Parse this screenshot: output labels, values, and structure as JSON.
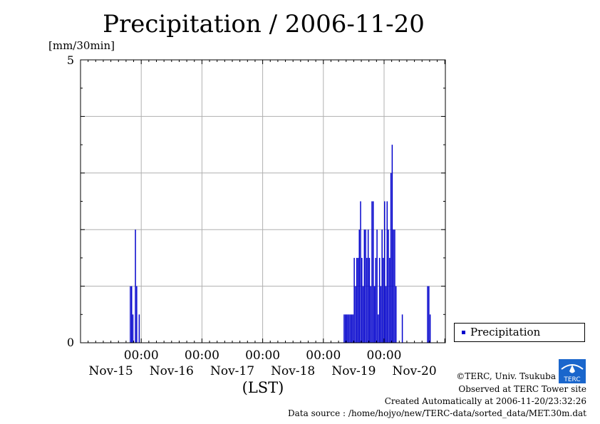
{
  "title": "Precipitation / 2006-11-20",
  "colors": {
    "series": "#0000cc",
    "grid": "#b0b0b0",
    "axis": "#000000"
  },
  "chart_data": {
    "type": "bar",
    "title": "Precipitation / 2006-11-20",
    "ylabel": "[mm/30min]",
    "xlabel": "(LST)",
    "ylim": [
      0,
      5
    ],
    "yticks": [
      "0",
      "5"
    ],
    "xlim": [
      "2006-11-15 00:00",
      "2006-11-21 00:00"
    ],
    "x_time_ticks": [
      "00:00",
      "00:00",
      "00:00",
      "00:00",
      "00:00"
    ],
    "x_date_ticks": [
      "Nov-15",
      "Nov-16",
      "Nov-17",
      "Nov-18",
      "Nov-19",
      "Nov-20"
    ],
    "grid": true,
    "legend": "outside-right",
    "series": [
      {
        "name": "Precipitation",
        "points": [
          [
            "2006-11-15 19:30",
            1.0
          ],
          [
            "2006-11-15 20:00",
            1.0
          ],
          [
            "2006-11-15 20:30",
            0.5
          ],
          [
            "2006-11-15 21:30",
            2.0
          ],
          [
            "2006-11-15 22:00",
            1.0
          ],
          [
            "2006-11-15 23:00",
            0.5
          ],
          [
            "2006-11-19 08:00",
            0.5
          ],
          [
            "2006-11-19 08:30",
            0.5
          ],
          [
            "2006-11-19 09:00",
            0.5
          ],
          [
            "2006-11-19 09:30",
            0.5
          ],
          [
            "2006-11-19 10:00",
            0.5
          ],
          [
            "2006-11-19 10:30",
            0.5
          ],
          [
            "2006-11-19 11:00",
            0.5
          ],
          [
            "2006-11-19 11:30",
            0.5
          ],
          [
            "2006-11-19 12:00",
            1.5
          ],
          [
            "2006-11-19 12:30",
            1.0
          ],
          [
            "2006-11-19 13:00",
            1.5
          ],
          [
            "2006-11-19 13:30",
            1.5
          ],
          [
            "2006-11-19 14:00",
            2.0
          ],
          [
            "2006-11-19 14:30",
            2.5
          ],
          [
            "2006-11-19 15:00",
            1.5
          ],
          [
            "2006-11-19 15:30",
            1.0
          ],
          [
            "2006-11-19 16:00",
            2.0
          ],
          [
            "2006-11-19 16:30",
            2.0
          ],
          [
            "2006-11-19 17:00",
            1.5
          ],
          [
            "2006-11-19 17:30",
            2.0
          ],
          [
            "2006-11-19 18:00",
            1.5
          ],
          [
            "2006-11-19 18:30",
            1.0
          ],
          [
            "2006-11-19 19:00",
            2.5
          ],
          [
            "2006-11-19 19:30",
            2.5
          ],
          [
            "2006-11-19 20:00",
            1.0
          ],
          [
            "2006-11-19 20:30",
            1.5
          ],
          [
            "2006-11-19 21:00",
            2.0
          ],
          [
            "2006-11-19 21:30",
            0.5
          ],
          [
            "2006-11-19 22:00",
            1.5
          ],
          [
            "2006-11-19 22:30",
            1.0
          ],
          [
            "2006-11-19 23:00",
            2.0
          ],
          [
            "2006-11-19 23:30",
            1.5
          ],
          [
            "2006-11-20 00:00",
            2.5
          ],
          [
            "2006-11-20 00:30",
            1.0
          ],
          [
            "2006-11-20 01:00",
            2.5
          ],
          [
            "2006-11-20 01:30",
            2.0
          ],
          [
            "2006-11-20 02:00",
            1.5
          ],
          [
            "2006-11-20 02:30",
            3.0
          ],
          [
            "2006-11-20 03:00",
            3.5
          ],
          [
            "2006-11-20 03:30",
            2.0
          ],
          [
            "2006-11-20 04:00",
            2.0
          ],
          [
            "2006-11-20 04:30",
            1.0
          ],
          [
            "2006-11-20 07:00",
            0.5
          ],
          [
            "2006-11-20 17:00",
            1.0
          ],
          [
            "2006-11-20 17:30",
            1.0
          ],
          [
            "2006-11-20 18:00",
            0.5
          ]
        ]
      }
    ]
  },
  "legend_label": "Precipitation",
  "credits": {
    "copyright": "©TERC, Univ. Tsukuba",
    "site": "Observed at TERC Tower site",
    "created": "Created Automatically at 2006-11-20/23:32:26",
    "source": "Data source : /home/hojyo/new/TERC-data/sorted_data/MET.30m.dat",
    "logo_text": "TERC"
  }
}
